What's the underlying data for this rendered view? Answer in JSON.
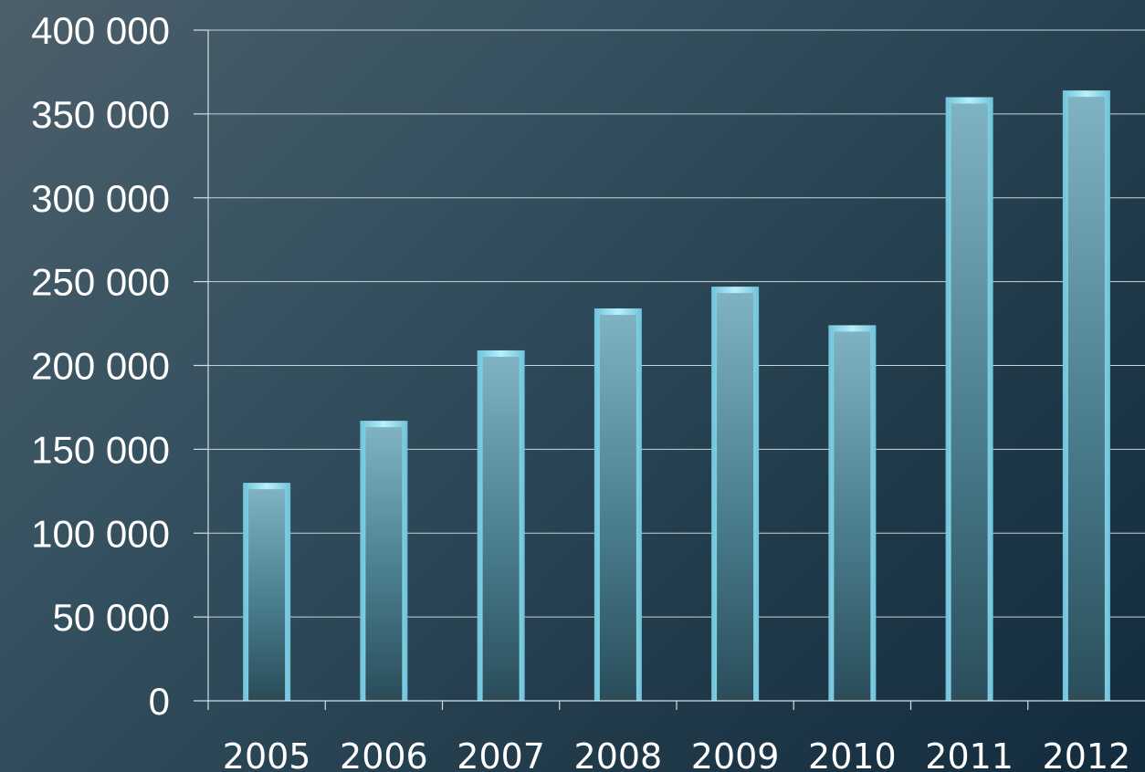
{
  "chart_data": {
    "type": "bar",
    "title": "",
    "xlabel": "",
    "ylabel": "",
    "categories": [
      "2005",
      "2006",
      "2007",
      "2008",
      "2009",
      "2010",
      "2011",
      "2012"
    ],
    "values": [
      130000,
      167000,
      209000,
      234000,
      247000,
      224000,
      360000,
      364000
    ],
    "ylim": [
      0,
      400000
    ],
    "yticks": [
      0,
      50000,
      100000,
      150000,
      200000,
      250000,
      300000,
      350000,
      400000
    ],
    "ytick_labels": [
      "0",
      "50 000",
      "100 000",
      "150 000",
      "200 000",
      "250 000",
      "300 000",
      "350 000",
      "400 000"
    ],
    "grid": true,
    "legend": "none",
    "colors": {
      "bar_edge": "#9fe2f4",
      "bar_top": "#7fb2c2",
      "bar_bottom": "#2b4f5c",
      "gridline": "#c9d4da",
      "label": "#ffffff"
    }
  }
}
